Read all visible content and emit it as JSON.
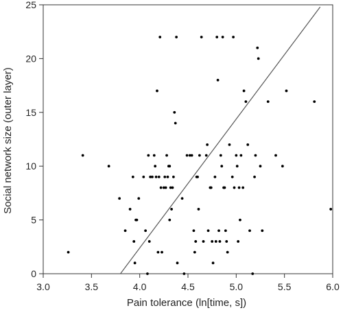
{
  "chart_data": {
    "type": "scatter",
    "title": "",
    "xlabel": "Pain tolerance (ln[time, s])",
    "ylabel": "Social network size (outer layer)",
    "xlim": [
      3.0,
      6.0
    ],
    "ylim": [
      0,
      25
    ],
    "xticks": [
      3.0,
      3.5,
      4.0,
      4.5,
      5.0,
      5.5,
      6.0
    ],
    "yticks": [
      0,
      5,
      10,
      15,
      20,
      25
    ],
    "xtick_labels": [
      "3.0",
      "3.5",
      "4.0",
      "4.5",
      "5.0",
      "5.5",
      "6.0"
    ],
    "ytick_labels": [
      "0",
      "5",
      "10",
      "15",
      "20",
      "25"
    ],
    "grid": false,
    "legend": "none",
    "point_color": "#000000",
    "line_color": "#555555",
    "trend_line": {
      "x": [
        3.8,
        5.87
      ],
      "y": [
        0,
        24.8
      ]
    },
    "points": [
      {
        "x": 3.26,
        "y": 2
      },
      {
        "x": 3.41,
        "y": 11
      },
      {
        "x": 3.68,
        "y": 10
      },
      {
        "x": 3.79,
        "y": 7
      },
      {
        "x": 3.85,
        "y": 4
      },
      {
        "x": 3.9,
        "y": 6
      },
      {
        "x": 3.93,
        "y": 9
      },
      {
        "x": 3.94,
        "y": 3
      },
      {
        "x": 3.95,
        "y": 1
      },
      {
        "x": 3.96,
        "y": 5
      },
      {
        "x": 3.97,
        "y": 5
      },
      {
        "x": 3.99,
        "y": 7
      },
      {
        "x": 4.04,
        "y": 9
      },
      {
        "x": 4.06,
        "y": 4
      },
      {
        "x": 4.08,
        "y": 0
      },
      {
        "x": 4.1,
        "y": 3
      },
      {
        "x": 4.09,
        "y": 11
      },
      {
        "x": 4.11,
        "y": 9
      },
      {
        "x": 4.13,
        "y": 9
      },
      {
        "x": 4.15,
        "y": 11
      },
      {
        "x": 4.16,
        "y": 10
      },
      {
        "x": 4.17,
        "y": 9
      },
      {
        "x": 4.18,
        "y": 17
      },
      {
        "x": 4.19,
        "y": 2
      },
      {
        "x": 4.2,
        "y": 9
      },
      {
        "x": 4.21,
        "y": 22
      },
      {
        "x": 4.22,
        "y": 8
      },
      {
        "x": 4.23,
        "y": 2
      },
      {
        "x": 4.25,
        "y": 8
      },
      {
        "x": 4.26,
        "y": 9
      },
      {
        "x": 4.27,
        "y": 8
      },
      {
        "x": 4.28,
        "y": 11
      },
      {
        "x": 4.29,
        "y": 9
      },
      {
        "x": 4.3,
        "y": 10
      },
      {
        "x": 4.31,
        "y": 10
      },
      {
        "x": 4.31,
        "y": 5
      },
      {
        "x": 4.32,
        "y": 8
      },
      {
        "x": 4.33,
        "y": 6
      },
      {
        "x": 4.34,
        "y": 8
      },
      {
        "x": 4.35,
        "y": 9
      },
      {
        "x": 4.36,
        "y": 15
      },
      {
        "x": 4.37,
        "y": 14
      },
      {
        "x": 4.38,
        "y": 22
      },
      {
        "x": 4.39,
        "y": 1
      },
      {
        "x": 4.44,
        "y": 7
      },
      {
        "x": 4.46,
        "y": 0
      },
      {
        "x": 4.49,
        "y": 11
      },
      {
        "x": 4.52,
        "y": 11
      },
      {
        "x": 4.54,
        "y": 11
      },
      {
        "x": 4.56,
        "y": 4
      },
      {
        "x": 4.57,
        "y": 2
      },
      {
        "x": 4.58,
        "y": 3
      },
      {
        "x": 4.59,
        "y": 9
      },
      {
        "x": 4.6,
        "y": 9
      },
      {
        "x": 4.61,
        "y": 6
      },
      {
        "x": 4.62,
        "y": 11
      },
      {
        "x": 4.64,
        "y": 22
      },
      {
        "x": 4.66,
        "y": 3
      },
      {
        "x": 4.69,
        "y": 11
      },
      {
        "x": 4.7,
        "y": 12
      },
      {
        "x": 4.71,
        "y": 4
      },
      {
        "x": 4.73,
        "y": 8
      },
      {
        "x": 4.74,
        "y": 8
      },
      {
        "x": 4.75,
        "y": 3
      },
      {
        "x": 4.76,
        "y": 1
      },
      {
        "x": 4.78,
        "y": 9
      },
      {
        "x": 4.79,
        "y": 3
      },
      {
        "x": 4.8,
        "y": 22
      },
      {
        "x": 4.81,
        "y": 18
      },
      {
        "x": 4.82,
        "y": 4
      },
      {
        "x": 4.83,
        "y": 3
      },
      {
        "x": 4.84,
        "y": 11
      },
      {
        "x": 4.85,
        "y": 10
      },
      {
        "x": 4.86,
        "y": 22
      },
      {
        "x": 4.87,
        "y": 8
      },
      {
        "x": 4.88,
        "y": 8
      },
      {
        "x": 4.89,
        "y": 4
      },
      {
        "x": 4.9,
        "y": 3
      },
      {
        "x": 4.91,
        "y": 2
      },
      {
        "x": 4.93,
        "y": 12
      },
      {
        "x": 4.96,
        "y": 9
      },
      {
        "x": 4.97,
        "y": 22
      },
      {
        "x": 4.98,
        "y": 8
      },
      {
        "x": 5.0,
        "y": 11
      },
      {
        "x": 5.01,
        "y": 10
      },
      {
        "x": 5.02,
        "y": 3
      },
      {
        "x": 5.03,
        "y": 8
      },
      {
        "x": 5.04,
        "y": 5
      },
      {
        "x": 5.05,
        "y": 11
      },
      {
        "x": 5.07,
        "y": 8
      },
      {
        "x": 5.08,
        "y": 17
      },
      {
        "x": 5.1,
        "y": 16
      },
      {
        "x": 5.12,
        "y": 12
      },
      {
        "x": 5.14,
        "y": 4
      },
      {
        "x": 5.17,
        "y": 0
      },
      {
        "x": 5.19,
        "y": 9
      },
      {
        "x": 5.2,
        "y": 11
      },
      {
        "x": 5.22,
        "y": 21
      },
      {
        "x": 5.23,
        "y": 20
      },
      {
        "x": 5.25,
        "y": 10
      },
      {
        "x": 5.27,
        "y": 4
      },
      {
        "x": 5.33,
        "y": 16
      },
      {
        "x": 5.41,
        "y": 11
      },
      {
        "x": 5.48,
        "y": 10
      },
      {
        "x": 5.52,
        "y": 17
      },
      {
        "x": 5.81,
        "y": 16
      },
      {
        "x": 5.98,
        "y": 6
      }
    ]
  }
}
